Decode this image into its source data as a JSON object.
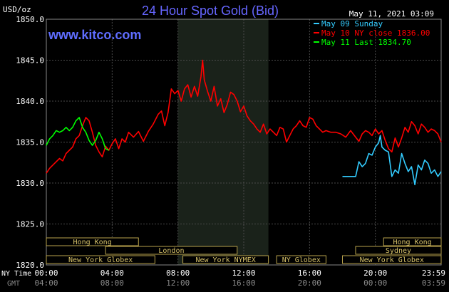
{
  "chart_data": {
    "type": "line",
    "title": "24 Hour Spot Gold (Bid)",
    "unit_label": "USD/oz",
    "brand": "www.kitco.com",
    "timestamp": "May 11, 2021 03:09",
    "ylim": [
      1820,
      1850
    ],
    "y_ticks": [
      "1850.0",
      "1845.0",
      "1840.0",
      "1835.0",
      "1830.0",
      "1825.0",
      "1820.0"
    ],
    "x_tick_labels_ny": [
      "00:00",
      "04:00",
      "08:00",
      "12:00",
      "16:00",
      "20:00",
      "23:59"
    ],
    "x_tick_labels_gmt": [
      "04:00",
      "08:00",
      "12:00",
      "16:00",
      "20:00",
      "00:00",
      "03:59"
    ],
    "x_axis_row_labels": [
      "NY Time",
      "GMT"
    ],
    "legend": [
      {
        "label": "May 09 Sunday",
        "color": "#33ccff"
      },
      {
        "label": "May 10 NY close 1836.00",
        "color": "#ff0000"
      },
      {
        "label": "May 11 Last 1834.70",
        "color": "#00ff00"
      }
    ],
    "highlight_band_hours": [
      8.0,
      13.5
    ],
    "sessions_left": [
      {
        "label": "Hong Kong",
        "start": 0.0,
        "end": 5.6,
        "row": 0
      },
      {
        "label": "London",
        "start": 3.6,
        "end": 11.6,
        "row": 1
      },
      {
        "label": "New York Globex",
        "start": 0.0,
        "end": 6.6,
        "row": 2
      },
      {
        "label": "New York NYMEX",
        "start": 8.3,
        "end": 13.5,
        "row": 2
      },
      {
        "label": "NY Globex",
        "start": 14.0,
        "end": 17.0,
        "row": 2
      }
    ],
    "sessions_right": [
      {
        "label": "Hong Kong",
        "start": 20.5,
        "end": 24.0,
        "row": 0
      },
      {
        "label": "Sydney",
        "start": 18.8,
        "end": 24.0,
        "row": 1
      },
      {
        "label": "New York Globex",
        "start": 18.0,
        "end": 24.0,
        "row": 2
      }
    ],
    "series": [
      {
        "name": "May 10 NY close 1836.00",
        "color": "#ff0000",
        "x": [
          0,
          0.2,
          0.5,
          0.8,
          1.0,
          1.2,
          1.4,
          1.6,
          1.8,
          2.0,
          2.2,
          2.4,
          2.6,
          2.8,
          3.0,
          3.2,
          3.4,
          3.6,
          3.8,
          4.0,
          4.2,
          4.4,
          4.6,
          4.8,
          5.0,
          5.3,
          5.6,
          5.9,
          6.2,
          6.5,
          6.8,
          7.0,
          7.2,
          7.4,
          7.6,
          7.8,
          8.0,
          8.2,
          8.4,
          8.6,
          8.8,
          9.0,
          9.2,
          9.4,
          9.5,
          9.6,
          9.8,
          10.0,
          10.2,
          10.4,
          10.6,
          10.8,
          11.0,
          11.2,
          11.4,
          11.6,
          11.8,
          12.0,
          12.2,
          12.4,
          12.6,
          12.8,
          13.0,
          13.2,
          13.4,
          13.6,
          13.8,
          14.0,
          14.2,
          14.4,
          14.6,
          14.8,
          15.0,
          15.2,
          15.4,
          15.6,
          15.8,
          16.0,
          16.2,
          16.4,
          16.6,
          16.8,
          17.0,
          17.3,
          17.6,
          17.9,
          18.2,
          18.5,
          18.8,
          19.0,
          19.2,
          19.4,
          19.6,
          19.8,
          20.0,
          20.2,
          20.4,
          20.6,
          20.8,
          21.0,
          21.2,
          21.4,
          21.6,
          21.8,
          22.0,
          22.2,
          22.4,
          22.6,
          22.8,
          23.0,
          23.2,
          23.4,
          23.6,
          23.8,
          24.0
        ],
        "y": [
          1831.2,
          1831.8,
          1832.4,
          1833.0,
          1832.7,
          1833.6,
          1834.0,
          1834.4,
          1835.4,
          1835.8,
          1837.0,
          1838.0,
          1837.6,
          1836.2,
          1834.6,
          1833.8,
          1833.2,
          1834.5,
          1834.0,
          1834.8,
          1835.4,
          1834.2,
          1835.4,
          1835.0,
          1836.2,
          1835.6,
          1836.3,
          1835.1,
          1836.3,
          1837.2,
          1838.4,
          1838.8,
          1837.0,
          1838.6,
          1841.5,
          1840.9,
          1841.3,
          1840.0,
          1841.5,
          1842.0,
          1840.5,
          1841.8,
          1840.6,
          1843.0,
          1845.0,
          1842.6,
          1841.2,
          1840.0,
          1841.8,
          1839.4,
          1840.3,
          1838.6,
          1839.6,
          1841.1,
          1840.8,
          1840.0,
          1838.7,
          1839.4,
          1838.2,
          1837.6,
          1837.2,
          1836.6,
          1836.2,
          1837.2,
          1836.0,
          1836.6,
          1836.2,
          1835.8,
          1836.8,
          1836.6,
          1835.0,
          1835.8,
          1836.6,
          1837.0,
          1837.6,
          1837.0,
          1836.8,
          1838.0,
          1837.8,
          1837.0,
          1836.6,
          1836.2,
          1836.4,
          1836.2,
          1836.2,
          1836.0,
          1835.6,
          1836.4,
          1835.6,
          1835.1,
          1836.0,
          1836.4,
          1836.2,
          1835.8,
          1836.6,
          1836.0,
          1836.4,
          1835.2,
          1834.2,
          1833.8,
          1835.5,
          1834.4,
          1835.5,
          1836.8,
          1836.2,
          1837.5,
          1837.0,
          1836.0,
          1837.2,
          1836.8,
          1836.2,
          1836.6,
          1836.4,
          1836.0,
          1835.0
        ],
        "note_y": "values read from the plot"
      },
      {
        "name": "May 09 Sunday",
        "color": "#33ccff",
        "x": [
          18.0,
          18.4,
          18.8,
          19.0,
          19.2,
          19.4,
          19.6,
          19.8,
          20.0,
          20.2,
          20.3,
          20.4,
          20.6,
          20.8,
          21.0,
          21.2,
          21.4,
          21.6,
          21.8,
          22.0,
          22.2,
          22.4,
          22.6,
          22.8,
          23.0,
          23.2,
          23.4,
          23.6,
          23.8,
          24.0
        ],
        "y": [
          1830.8,
          1830.8,
          1830.8,
          1832.6,
          1832.0,
          1832.4,
          1833.6,
          1833.4,
          1834.4,
          1834.9,
          1835.8,
          1834.4,
          1834.0,
          1833.8,
          1830.8,
          1831.6,
          1831.2,
          1833.6,
          1832.4,
          1831.4,
          1832.0,
          1829.8,
          1832.2,
          1831.6,
          1832.8,
          1832.4,
          1831.2,
          1831.6,
          1830.8,
          1831.4
        ]
      },
      {
        "name": "May 11 Last 1834.70",
        "color": "#00ff00",
        "x": [
          0.0,
          0.2,
          0.4,
          0.6,
          0.8,
          1.0,
          1.2,
          1.4,
          1.6,
          1.8,
          2.0,
          2.2,
          2.4,
          2.6,
          2.8,
          3.0,
          3.2,
          3.4,
          3.6,
          3.8
        ],
        "y": [
          1834.6,
          1835.4,
          1835.8,
          1836.4,
          1836.2,
          1836.4,
          1836.8,
          1836.4,
          1836.8,
          1837.6,
          1838.0,
          1836.8,
          1836.2,
          1835.2,
          1834.6,
          1835.2,
          1836.2,
          1835.4,
          1834.2,
          1834.0
        ]
      }
    ]
  }
}
